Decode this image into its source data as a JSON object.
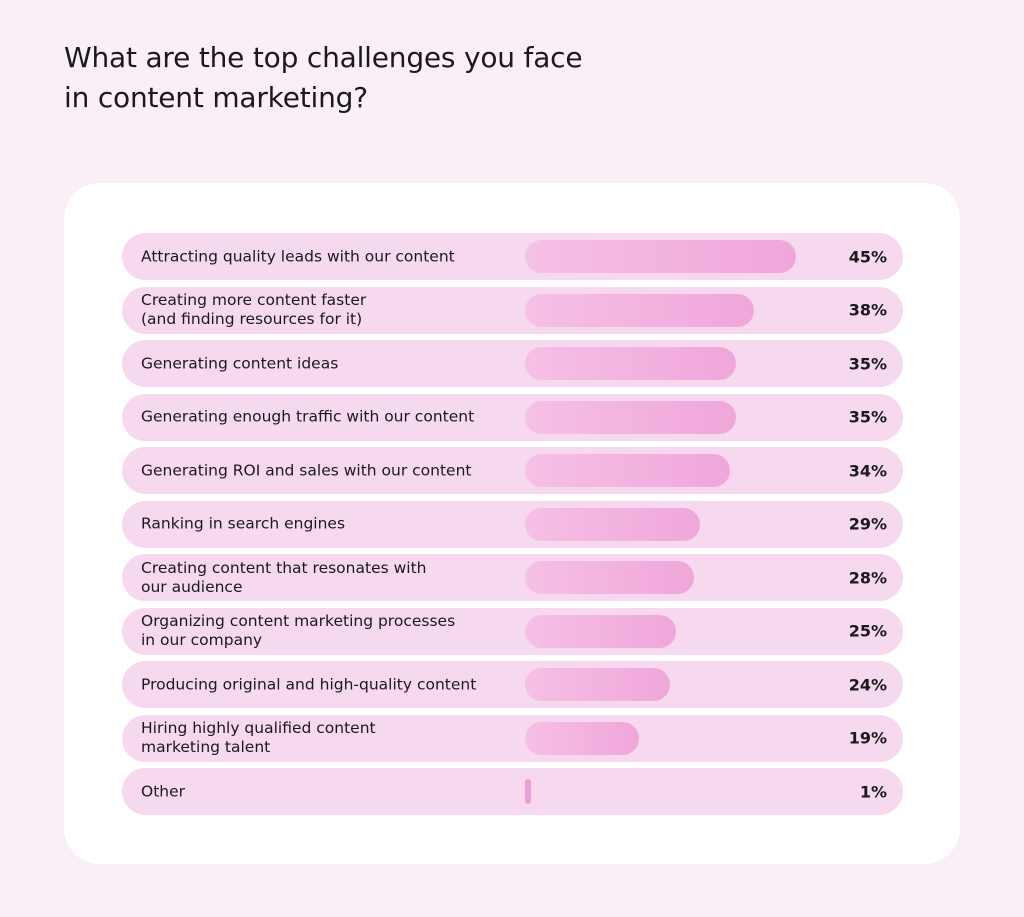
{
  "title": "What are the top challenges you face\nin content marketing?",
  "colors": {
    "background": "#fbeff7",
    "card": "#ffffff",
    "row": "#f6d9ef",
    "bar_start": "#f5c0e6",
    "bar_end": "#f0a6da"
  },
  "chart_data": {
    "type": "bar",
    "orientation": "horizontal",
    "title": "What are the top challenges you face\nin content marketing?",
    "unit": "%",
    "xlim": [
      0,
      45
    ],
    "categories": [
      "Attracting quality leads with our content",
      "Creating more content faster\n(and finding resources for it)",
      "Generating content ideas",
      "Generating enough traffic with our content",
      "Generating ROI and sales with our content",
      "Ranking in search engines",
      "Creating content that resonates with\nour audience",
      "Organizing content marketing processes\nin our company",
      "Producing original and high-quality content",
      "Hiring highly qualified content\nmarketing talent",
      "Other"
    ],
    "values": [
      45,
      38,
      35,
      35,
      34,
      29,
      28,
      25,
      24,
      19,
      1
    ],
    "value_labels": [
      "45%",
      "38%",
      "35%",
      "35%",
      "34%",
      "29%",
      "28%",
      "25%",
      "24%",
      "19%",
      "1%"
    ]
  }
}
